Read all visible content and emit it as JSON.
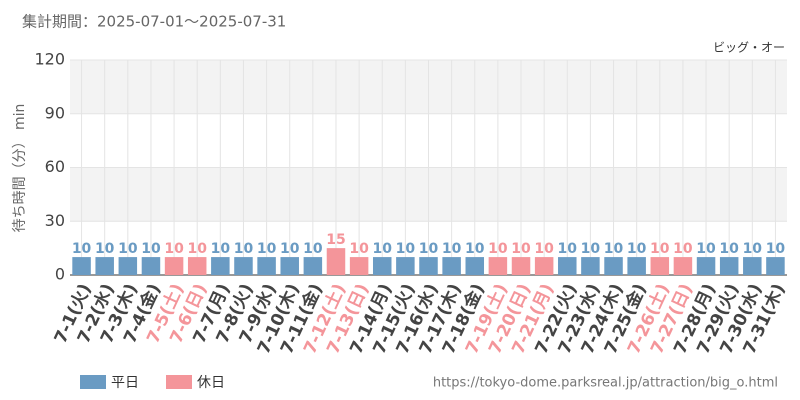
{
  "chart_data": {
    "type": "bar",
    "title": "集計期間：2025-07-01～2025-07-31",
    "subtitle": "ビッグ・オー",
    "y_label": "待ち時間（分） min",
    "source": "https://tokyo-dome.parksreal.jp/attraction/big_o.html",
    "categories": [
      "7-1(火)",
      "7-2(水)",
      "7-3(木)",
      "7-4(金)",
      "7-5(土)",
      "7-6(日)",
      "7-7(月)",
      "7-8(火)",
      "7-9(水)",
      "7-10(木)",
      "7-11(金)",
      "7-12(土)",
      "7-13(日)",
      "7-14(月)",
      "7-15(火)",
      "7-16(水)",
      "7-17(木)",
      "7-18(金)",
      "7-19(土)",
      "7-20(日)",
      "7-21(月)",
      "7-22(火)",
      "7-23(水)",
      "7-24(木)",
      "7-25(金)",
      "7-26(土)",
      "7-27(日)",
      "7-28(月)",
      "7-29(火)",
      "7-30(水)",
      "7-31(木)"
    ],
    "series": [
      {
        "name": "平日",
        "color": "#6a9bc3",
        "values": [
          10,
          10,
          10,
          10,
          null,
          null,
          10,
          10,
          10,
          10,
          10,
          null,
          null,
          10,
          10,
          10,
          10,
          10,
          null,
          null,
          null,
          10,
          10,
          10,
          10,
          null,
          null,
          10,
          10,
          10,
          10
        ]
      },
      {
        "name": "休日",
        "color": "#f4959a",
        "values": [
          null,
          null,
          null,
          null,
          10,
          10,
          null,
          null,
          null,
          null,
          null,
          15,
          10,
          null,
          null,
          null,
          null,
          null,
          10,
          10,
          10,
          null,
          null,
          null,
          null,
          10,
          10,
          null,
          null,
          null,
          null
        ]
      }
    ],
    "ylim": [
      0,
      120
    ],
    "yticks": [
      0,
      30,
      60,
      90,
      120
    ],
    "grid": true
  }
}
